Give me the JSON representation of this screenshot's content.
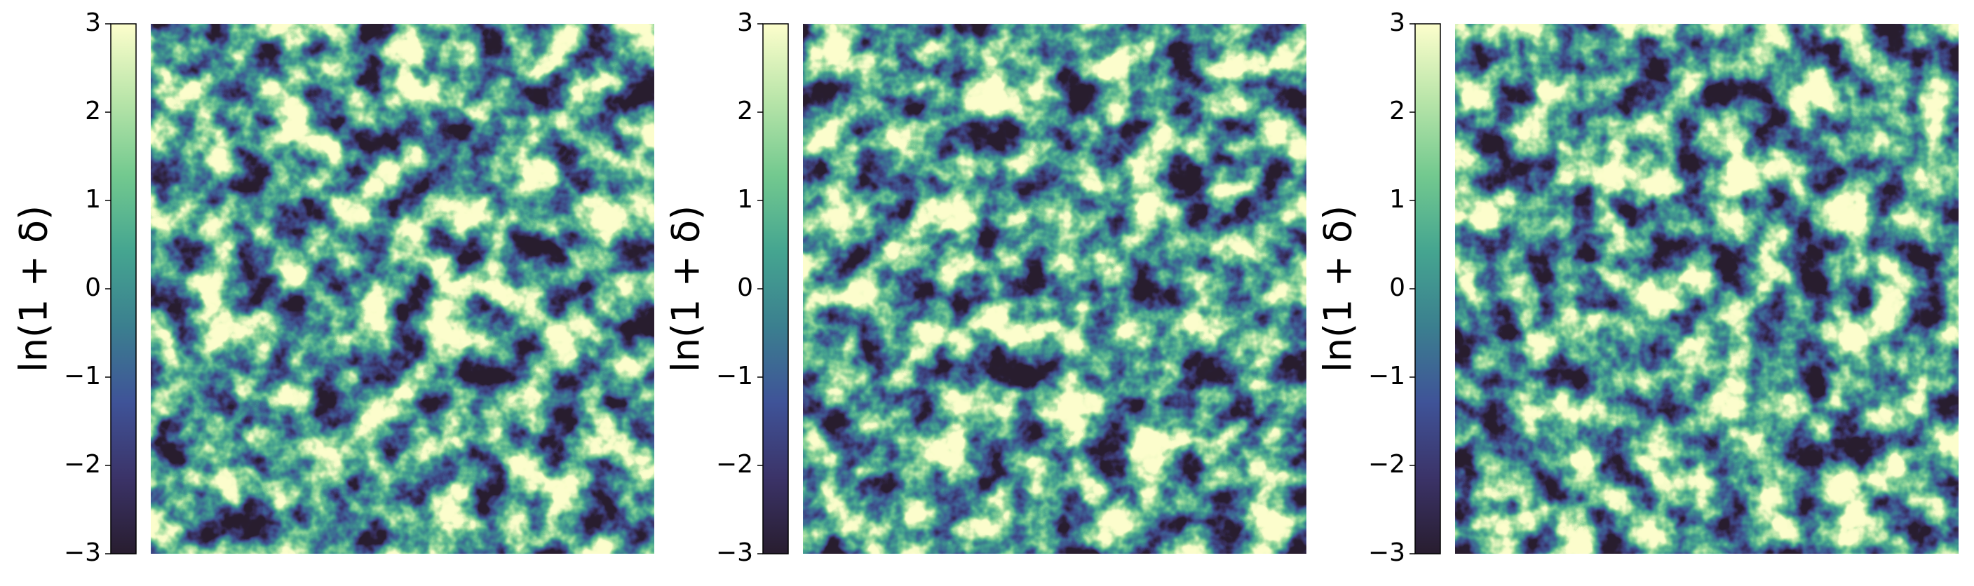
{
  "chart_data": [
    {
      "type": "heatmap",
      "colorbar_label": "ln(1 + δ)",
      "clim": [
        -3,
        3
      ],
      "colorbar_ticks": [
        {
          "value": -3,
          "label": "−3"
        },
        {
          "value": -2,
          "label": "−2"
        },
        {
          "value": -1,
          "label": "−1"
        },
        0,
        1,
        2,
        3
      ],
      "colormap": [
        "#281d2f",
        "#3b3368",
        "#3f5398",
        "#3b7f8f",
        "#45a590",
        "#73c98f",
        "#b9e5a9",
        "#fdfecc"
      ]
    },
    {
      "type": "heatmap",
      "colorbar_label": "ln(1 + δ)",
      "clim": [
        -3,
        3
      ],
      "colorbar_ticks": [
        {
          "value": -3,
          "label": "−3"
        },
        {
          "value": -2,
          "label": "−2"
        },
        {
          "value": -1,
          "label": "−1"
        },
        0,
        1,
        2,
        3
      ],
      "colormap": [
        "#281d2f",
        "#3b3368",
        "#3f5398",
        "#3b7f8f",
        "#45a590",
        "#73c98f",
        "#b9e5a9",
        "#fdfecc"
      ]
    },
    {
      "type": "heatmap",
      "colorbar_label": "ln(1 + δ)",
      "clim": [
        -3,
        3
      ],
      "colorbar_ticks": [
        {
          "value": -3,
          "label": "−3"
        },
        {
          "value": -2,
          "label": "−2"
        },
        {
          "value": -1,
          "label": "−1"
        },
        0,
        1,
        2,
        3
      ],
      "colormap": [
        "#281d2f",
        "#3b3368",
        "#3f5398",
        "#3b7f8f",
        "#45a590",
        "#73c98f",
        "#b9e5a9",
        "#fdfecc"
      ]
    }
  ]
}
